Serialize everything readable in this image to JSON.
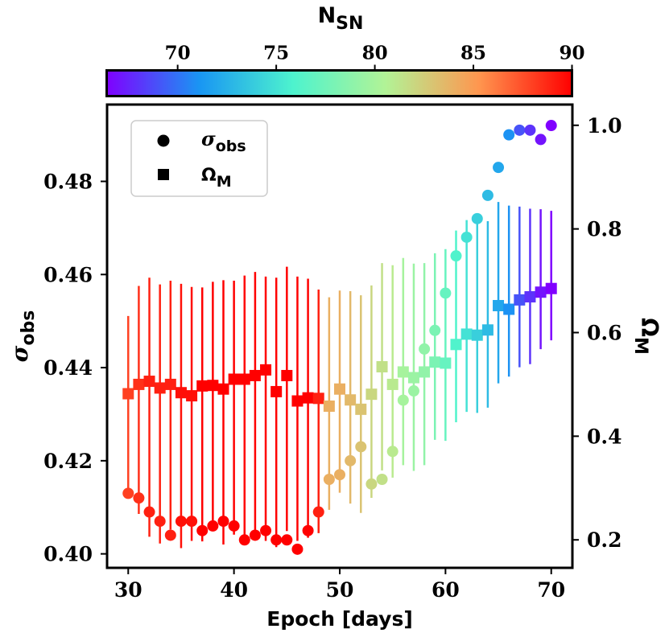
{
  "chart_data": {
    "type": "scatter",
    "title": "",
    "colorbar": {
      "label_main": "N",
      "label_sub": "SN",
      "range": [
        66.4,
        90
      ],
      "ticks": [
        70,
        75,
        80,
        85,
        90
      ],
      "colormap": "rainbow",
      "palette": [
        "#8000ff",
        "#1996f3",
        "#4df3ce",
        "#b2f396",
        "#ff964f",
        "#ff0000"
      ]
    },
    "xlabel": "Epoch [days]",
    "xlim": [
      28,
      72
    ],
    "xticks": [
      30,
      40,
      50,
      60,
      70
    ],
    "ylabel_left_main": "σ",
    "ylabel_left_sub": "obs",
    "ylim_left": [
      0.397,
      0.4965
    ],
    "yticks_left": [
      0.4,
      0.42,
      0.44,
      0.46,
      0.48
    ],
    "ytick_labels_left": [
      "0.40",
      "0.42",
      "0.44",
      "0.46",
      "0.48"
    ],
    "ylabel_right_main": "Ω",
    "ylabel_right_sub": "M",
    "ylim_right": [
      0.146,
      1.04
    ],
    "yticks_right": [
      0.2,
      0.4,
      0.6,
      0.8,
      1.0
    ],
    "ytick_labels_right": [
      "0.2",
      "0.4",
      "0.6",
      "0.8",
      "1.0"
    ],
    "legend": {
      "position": "top-left",
      "entries": [
        {
          "marker": "circle",
          "main": "σ",
          "sub": "obs"
        },
        {
          "marker": "square",
          "main": "Ω",
          "sub": "M"
        }
      ]
    },
    "epochs": [
      30,
      31,
      32,
      33,
      34,
      35,
      36,
      37,
      38,
      39,
      40,
      41,
      42,
      43,
      44,
      45,
      46,
      47,
      48,
      49,
      50,
      51,
      52,
      53,
      54,
      55,
      56,
      57,
      58,
      59,
      60,
      61,
      62,
      63,
      64,
      65,
      66,
      67,
      68,
      69,
      70
    ],
    "n_sn": [
      88,
      88.5,
      89,
      89,
      89,
      89.5,
      89.5,
      90,
      90,
      90,
      90,
      90,
      90,
      90,
      90,
      90,
      90,
      90,
      89,
      84,
      84,
      83.5,
      83,
      82,
      81.5,
      81,
      80,
      79.5,
      79,
      78,
      77,
      76,
      75,
      74,
      73,
      72,
      71,
      69,
      68,
      67,
      66.4
    ],
    "sigma_obs": [
      0.413,
      0.412,
      0.409,
      0.407,
      0.404,
      0.407,
      0.407,
      0.405,
      0.406,
      0.407,
      0.406,
      0.403,
      0.404,
      0.405,
      0.403,
      0.403,
      0.401,
      0.405,
      0.409,
      0.416,
      0.417,
      0.42,
      0.423,
      0.415,
      0.416,
      0.422,
      0.433,
      0.435,
      0.444,
      0.448,
      0.456,
      0.464,
      0.468,
      0.472,
      0.477,
      0.483,
      0.49,
      0.491,
      0.491,
      0.489,
      0.492
    ],
    "omega_m": [
      0.482,
      0.5,
      0.506,
      0.493,
      0.5,
      0.484,
      0.478,
      0.497,
      0.498,
      0.491,
      0.51,
      0.51,
      0.517,
      0.528,
      0.486,
      0.517,
      0.468,
      0.474,
      0.473,
      0.458,
      0.491,
      0.47,
      0.452,
      0.481,
      0.534,
      0.5,
      0.524,
      0.513,
      0.524,
      0.543,
      0.541,
      0.577,
      0.597,
      0.595,
      0.605,
      0.652,
      0.645,
      0.663,
      0.669,
      0.678,
      0.685
    ],
    "omega_m_err_low": [
      0.2,
      0.25,
      0.3,
      0.3,
      0.28,
      0.3,
      0.28,
      0.3,
      0.28,
      0.3,
      0.3,
      0.3,
      0.3,
      0.33,
      0.3,
      0.3,
      0.27,
      0.27,
      0.26,
      0.2,
      0.2,
      0.2,
      0.2,
      0.2,
      0.2,
      0.18,
      0.18,
      0.18,
      0.18,
      0.15,
      0.15,
      0.15,
      0.15,
      0.15,
      0.15,
      0.15,
      0.13,
      0.13,
      0.13,
      0.11,
      0.1
    ],
    "omega_m_err_high": [
      0.15,
      0.19,
      0.2,
      0.2,
      0.2,
      0.21,
      0.21,
      0.19,
      0.2,
      0.21,
      0.19,
      0.2,
      0.2,
      0.18,
      0.22,
      0.21,
      0.24,
      0.23,
      0.21,
      0.21,
      0.19,
      0.21,
      0.22,
      0.21,
      0.2,
      0.23,
      0.22,
      0.22,
      0.21,
      0.21,
      0.22,
      0.22,
      0.22,
      0.22,
      0.21,
      0.2,
      0.2,
      0.18,
      0.17,
      0.16,
      0.15
    ]
  }
}
